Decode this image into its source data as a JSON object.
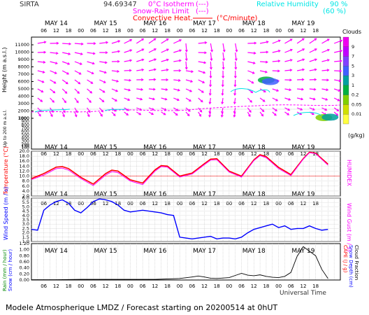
{
  "header": {
    "station": "SIRTA",
    "station_value": "94.69347",
    "legend_iso": "0°C Isotherm",
    "legend_iso_sym": "(---)",
    "legend_snow": "Snow-Rain Limit",
    "legend_snow_sym": "(---)",
    "legend_conv": "Convective Heat.",
    "legend_conv_unit": "(°C/minute)",
    "legend_rh": "Relative Humidity",
    "legend_rh_90": "90 %",
    "legend_rh_60": "(60 %)"
  },
  "day_labels": [
    "MAY 14",
    "MAY 15",
    "MAY 16",
    "MAY 17",
    "MAY 18",
    "MAY 19"
  ],
  "hour_labels": [
    "06",
    "12",
    "18",
    "00",
    "06",
    "12",
    "18",
    "00",
    "06",
    "12",
    "18",
    "00",
    "06",
    "12",
    "18",
    "00",
    "06",
    "12",
    "18",
    "00",
    "06",
    "12",
    "18"
  ],
  "footer": {
    "universal_time": "Universal Time",
    "credit": "Modele Atmospherique LMDZ / Forecast starting on 20200514 at 0hUT"
  },
  "colors": {
    "wind": "#ff00ff",
    "cyan": "#00e5e5",
    "temp": "#ff0000",
    "humidex": "#ff00ff",
    "windspeed": "#0000ff",
    "rain_line": "#000000",
    "green_label": "#008800"
  },
  "chart_data": [
    {
      "type": "heatmap",
      "title": "Clouds",
      "ylabel": "Height (m a.s.l.)",
      "ylabel_low": "Up to 200 m a.s.l.",
      "yticks_upper": [
        1000,
        2000,
        3000,
        4000,
        5000,
        6000,
        7000,
        8000,
        9000,
        10000,
        11000
      ],
      "yticks_lower": [
        100,
        150,
        200,
        300,
        400,
        500,
        600,
        700,
        800,
        900,
        1000
      ],
      "colorbar_label": "Clouds",
      "colorbar_unit": "(g/kg)",
      "colorbar_ticks": [
        "9",
        "7",
        "5",
        "3",
        "1",
        "0.2",
        "0.05",
        "0.01"
      ],
      "colorbar_colors": [
        "#f000f0",
        "#c000ff",
        "#8040ff",
        "#4060ff",
        "#00a0a0",
        "#00b040",
        "#80d000",
        "#d0e000",
        "#ffff40"
      ],
      "cloud_cells": [
        {
          "time_h": 114,
          "height_m": 6200,
          "level": 3
        },
        {
          "time_h": 116,
          "height_m": 6000,
          "level": 5
        },
        {
          "time_h": 142,
          "height_m": 1100,
          "level": 2
        },
        {
          "time_h": 145,
          "height_m": 1150,
          "level": 4
        }
      ]
    },
    {
      "type": "line",
      "x_unit": "hours since MAY 14 00UT",
      "ylabel": "Temperature (°C)",
      "ylabel_right": "HUMIDEX",
      "yticks": [
        2.0,
        4.0,
        6.0,
        8.0,
        10.0,
        12.0,
        14.0,
        16.0,
        18.0,
        20.0
      ],
      "ylim": [
        2,
        20
      ],
      "series": [
        {
          "name": "Temperature",
          "x": [
            0,
            6,
            12,
            15,
            18,
            24,
            30,
            36,
            39,
            42,
            48,
            54,
            60,
            63,
            66,
            72,
            78,
            84,
            87,
            90,
            96,
            102,
            108,
            111,
            114,
            120,
            126,
            132,
            135,
            138,
            144
          ],
          "values": [
            9.0,
            11.0,
            13.6,
            13.8,
            13.0,
            9.5,
            6.8,
            11.0,
            12.4,
            12.0,
            8.5,
            7.2,
            12.5,
            14.2,
            14.0,
            10.0,
            11.2,
            15.0,
            16.8,
            17.0,
            12.0,
            10.0,
            16.5,
            18.6,
            17.8,
            13.5,
            10.6,
            17.0,
            19.6,
            19.2,
            14.8
          ]
        },
        {
          "name": "HUMIDEX",
          "x": [
            0,
            6,
            12,
            15,
            18,
            24,
            30,
            36,
            39,
            42,
            48,
            54,
            60,
            63,
            66,
            72,
            78,
            84,
            87,
            90,
            96,
            102,
            108,
            111,
            114,
            120,
            126,
            132,
            135,
            138,
            144
          ],
          "values": [
            8.6,
            10.4,
            13.0,
            13.2,
            12.4,
            9.0,
            6.2,
            10.4,
            11.8,
            11.4,
            8.0,
            6.6,
            12.0,
            13.8,
            13.6,
            9.6,
            10.8,
            14.6,
            16.4,
            16.6,
            11.6,
            9.6,
            16.2,
            18.2,
            17.4,
            13.0,
            10.2,
            16.8,
            19.4,
            19.0,
            14.4
          ]
        }
      ]
    },
    {
      "type": "line",
      "x_unit": "hours since MAY 14 00UT",
      "ylabel": "Wind Speed (m / s)",
      "ylabel_right": "Wind Gust (m / s)",
      "yticks": [
        1.0,
        1.5,
        2.0,
        2.5,
        3.0,
        3.5,
        4.0,
        4.5,
        5.0,
        5.5,
        6.0
      ],
      "ylim": [
        1.0,
        6.0
      ],
      "series": [
        {
          "name": "Wind Speed",
          "x": [
            0,
            3,
            6,
            9,
            12,
            15,
            18,
            21,
            24,
            27,
            30,
            33,
            36,
            39,
            42,
            45,
            48,
            51,
            54,
            57,
            60,
            63,
            66,
            69,
            72,
            75,
            78,
            81,
            84,
            87,
            90,
            93,
            96,
            99,
            102,
            105,
            108,
            111,
            114,
            117,
            120,
            123,
            126,
            129,
            132,
            135,
            138,
            141,
            144
          ],
          "values": [
            2.4,
            2.3,
            4.6,
            5.2,
            5.6,
            5.8,
            5.4,
            4.6,
            4.3,
            4.9,
            5.6,
            5.9,
            5.8,
            5.6,
            5.2,
            4.6,
            4.4,
            4.5,
            4.6,
            4.5,
            4.4,
            4.3,
            4.1,
            4.0,
            1.5,
            1.4,
            1.3,
            1.4,
            1.5,
            1.6,
            1.3,
            1.4,
            1.4,
            1.3,
            1.5,
            2.0,
            2.4,
            2.6,
            2.8,
            3.0,
            2.6,
            2.8,
            2.4,
            2.5,
            2.5,
            2.8,
            2.5,
            2.3,
            2.4
          ]
        }
      ]
    },
    {
      "type": "area",
      "x_unit": "hours since MAY 14 00UT",
      "ylabel": "Rain (mm / hour)",
      "ylabel2": "Snow (cm / hour)",
      "ylabel_right": "CAPE (J / g)",
      "ylabel_right2": "Snow Depth (cm)",
      "ylabel_right3": "Cloud Fraction",
      "yticks": [
        0.0,
        0.2,
        0.4,
        0.6,
        0.8,
        1.0,
        1.2
      ],
      "ylim": [
        0,
        1.2
      ],
      "series": [
        {
          "name": "Cloud Fraction",
          "x": [
            0,
            12,
            24,
            36,
            48,
            60,
            72,
            78,
            81,
            84,
            87,
            90,
            96,
            99,
            102,
            105,
            108,
            111,
            114,
            117,
            120,
            123,
            126,
            129,
            132,
            135,
            138,
            141,
            144
          ],
          "values": [
            0.01,
            0.01,
            0.02,
            0.02,
            0.02,
            0.02,
            0.05,
            0.1,
            0.13,
            0.1,
            0.06,
            0.05,
            0.08,
            0.15,
            0.22,
            0.16,
            0.14,
            0.17,
            0.12,
            0.09,
            0.08,
            0.12,
            0.25,
            0.78,
            1.1,
            0.95,
            0.8,
            0.35,
            0.05
          ]
        }
      ]
    }
  ]
}
